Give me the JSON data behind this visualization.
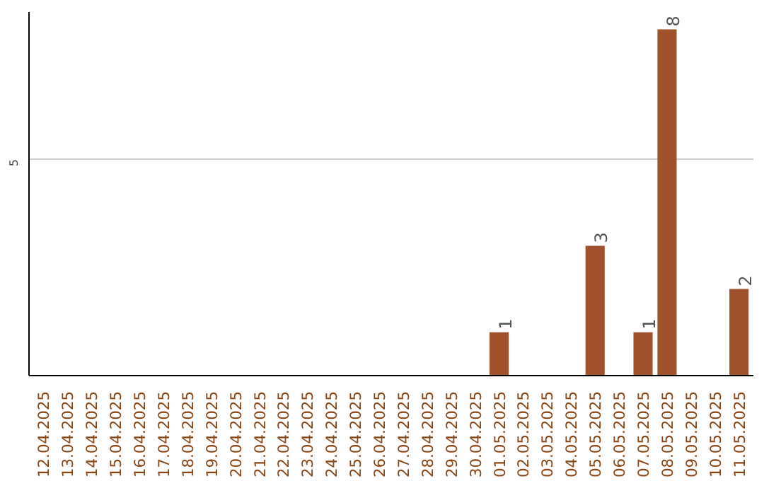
{
  "chart_data": {
    "type": "bar",
    "categories": [
      "12.04.2025",
      "13.04.2025",
      "14.04.2025",
      "15.04.2025",
      "16.04.2025",
      "17.04.2025",
      "18.04.2025",
      "19.04.2025",
      "20.04.2025",
      "21.04.2025",
      "22.04.2025",
      "23.04.2025",
      "24.04.2025",
      "25.04.2025",
      "26.04.2025",
      "27.04.2025",
      "28.04.2025",
      "29.04.2025",
      "30.04.2025",
      "01.05.2025",
      "02.05.2025",
      "03.05.2025",
      "04.05.2025",
      "05.05.2025",
      "06.05.2025",
      "07.05.2025",
      "08.05.2025",
      "09.05.2025",
      "10.05.2025",
      "11.05.2025"
    ],
    "values": [
      null,
      null,
      null,
      null,
      null,
      null,
      null,
      null,
      null,
      null,
      null,
      null,
      null,
      null,
      null,
      null,
      null,
      null,
      null,
      1,
      null,
      null,
      null,
      3,
      null,
      1,
      8,
      null,
      null,
      2
    ],
    "data_labels": true,
    "color": "#a0522d",
    "ylim": [
      0,
      8.4
    ],
    "yticks": [
      5
    ],
    "grid": "y"
  }
}
